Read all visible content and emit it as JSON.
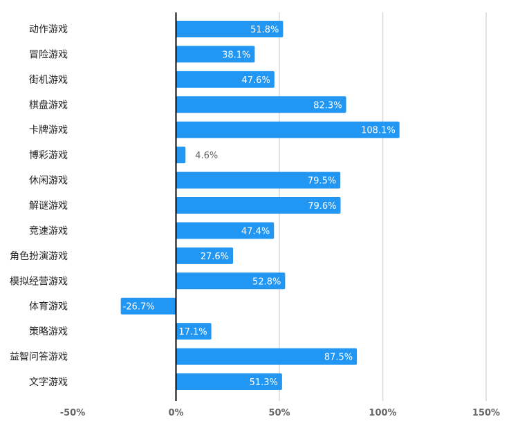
{
  "chart_data": {
    "type": "bar",
    "orientation": "horizontal",
    "title": "",
    "xlabel": "",
    "ylabel": "",
    "categories": [
      "动作游戏",
      "冒险游戏",
      "街机游戏",
      "棋盘游戏",
      "卡牌游戏",
      "博彩游戏",
      "休闲游戏",
      "解谜游戏",
      "竞速游戏",
      "角色扮演游戏",
      "模拟经营游戏",
      "体育游戏",
      "策略游戏",
      "益智问答游戏",
      "文字游戏"
    ],
    "values": [
      51.8,
      38.1,
      47.6,
      82.3,
      108.1,
      4.6,
      79.5,
      79.6,
      47.4,
      27.6,
      52.8,
      -26.7,
      17.1,
      87.5,
      51.3
    ],
    "value_labels": [
      "51.8%",
      "38.1%",
      "47.6%",
      "82.3%",
      "108.1%",
      "4.6%",
      "79.5%",
      "79.6%",
      "47.4%",
      "27.6%",
      "52.8%",
      "-26.7%",
      "17.1%",
      "87.5%",
      "51.3%"
    ],
    "xlim": [
      -50,
      150
    ],
    "ticks": [
      -50,
      0,
      50,
      100,
      150
    ],
    "tick_labels": [
      "-50%",
      "0%",
      "50%",
      "100%",
      "150%"
    ],
    "grid": true,
    "legend": "none",
    "bar_color": "#2196f3"
  }
}
